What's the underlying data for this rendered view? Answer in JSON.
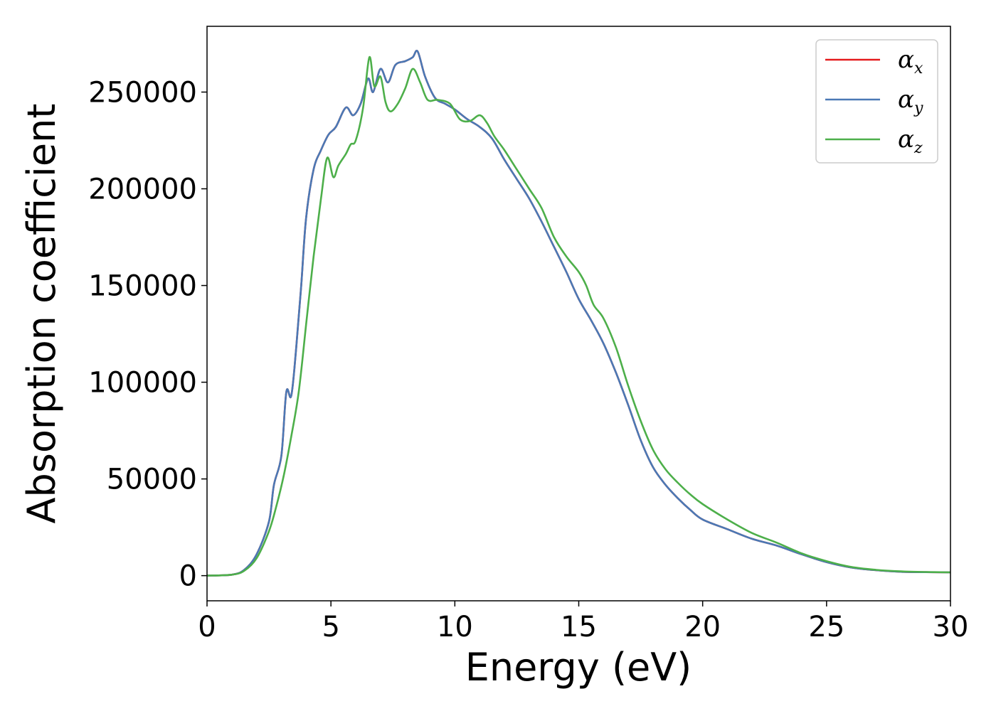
{
  "chart_data": {
    "type": "line",
    "xlabel": "Energy (eV)",
    "ylabel": "Absorption coefficient",
    "xlim": [
      0,
      30
    ],
    "ylim": [
      -13000,
      284000
    ],
    "xticks": [
      "0",
      "5",
      "10",
      "15",
      "20",
      "25",
      "30"
    ],
    "yticks": [
      "0",
      "50000",
      "100000",
      "150000",
      "200000",
      "250000"
    ],
    "grid": false,
    "legend_position": "top-right",
    "series": [
      {
        "name": "α_x",
        "symbol": "α",
        "subscript": "x",
        "color": "#e41a1c",
        "x": [
          0,
          1,
          1.5,
          2,
          2.5,
          2.7,
          3,
          3.2,
          3.4,
          3.6,
          3.8,
          4,
          4.3,
          4.6,
          4.9,
          5.2,
          5.6,
          5.9,
          6.2,
          6.5,
          6.7,
          7.0,
          7.3,
          7.6,
          8.0,
          8.3,
          8.5,
          8.8,
          9.2,
          9.6,
          10,
          10.5,
          11,
          11.5,
          12,
          12.5,
          13,
          13.5,
          14,
          14.5,
          15,
          15.5,
          16,
          16.5,
          17,
          17.5,
          18,
          18.5,
          19,
          19.5,
          20,
          21,
          22,
          23,
          24,
          25,
          26,
          27,
          28,
          29,
          30
        ],
        "values": [
          0,
          500,
          3000,
          11000,
          28000,
          47000,
          62000,
          95000,
          93000,
          118000,
          150000,
          185000,
          210000,
          220000,
          228000,
          232000,
          242000,
          238000,
          244000,
          257000,
          250000,
          262000,
          255000,
          264000,
          266000,
          268000,
          271000,
          258000,
          247000,
          244000,
          241000,
          236000,
          232000,
          226000,
          215000,
          205000,
          195000,
          183000,
          170000,
          157000,
          143000,
          132000,
          120000,
          105000,
          88000,
          70000,
          56000,
          47000,
          40000,
          34000,
          29000,
          24000,
          19000,
          15500,
          11000,
          7000,
          4200,
          2800,
          2000,
          1800,
          1700
        ]
      },
      {
        "name": "α_y",
        "symbol": "α",
        "subscript": "y",
        "color": "#4a79b5",
        "x": [
          0,
          1,
          1.5,
          2,
          2.5,
          2.7,
          3,
          3.2,
          3.4,
          3.6,
          3.8,
          4,
          4.3,
          4.6,
          4.9,
          5.2,
          5.6,
          5.9,
          6.2,
          6.5,
          6.7,
          7.0,
          7.3,
          7.6,
          8.0,
          8.3,
          8.5,
          8.8,
          9.2,
          9.6,
          10,
          10.5,
          11,
          11.5,
          12,
          12.5,
          13,
          13.5,
          14,
          14.5,
          15,
          15.5,
          16,
          16.5,
          17,
          17.5,
          18,
          18.5,
          19,
          19.5,
          20,
          21,
          22,
          23,
          24,
          25,
          26,
          27,
          28,
          29,
          30
        ],
        "values": [
          0,
          500,
          3000,
          11000,
          28000,
          47000,
          62000,
          95000,
          93000,
          118000,
          150000,
          185000,
          210000,
          220000,
          228000,
          232000,
          242000,
          238000,
          244000,
          257000,
          250000,
          262000,
          255000,
          264000,
          266000,
          268000,
          271000,
          258000,
          247000,
          244000,
          241000,
          236000,
          232000,
          226000,
          215000,
          205000,
          195000,
          183000,
          170000,
          157000,
          143000,
          132000,
          120000,
          105000,
          88000,
          70000,
          56000,
          47000,
          40000,
          34000,
          29000,
          24000,
          19000,
          15500,
          11000,
          7000,
          4200,
          2800,
          2000,
          1800,
          1700
        ]
      },
      {
        "name": "α_z",
        "symbol": "α",
        "subscript": "z",
        "color": "#4daf4a",
        "x": [
          0,
          1,
          1.5,
          2,
          2.5,
          2.8,
          3.1,
          3.4,
          3.7,
          4.0,
          4.3,
          4.6,
          4.85,
          5.1,
          5.3,
          5.6,
          5.8,
          6.0,
          6.3,
          6.55,
          6.75,
          7.0,
          7.2,
          7.4,
          7.7,
          8.0,
          8.3,
          8.6,
          8.9,
          9.3,
          9.8,
          10.2,
          10.6,
          11.0,
          11.3,
          11.6,
          12,
          12.5,
          13,
          13.5,
          14,
          14.5,
          15,
          15.3,
          15.6,
          16,
          16.5,
          17,
          17.5,
          18,
          18.5,
          19,
          19.5,
          20,
          21,
          22,
          23,
          24,
          25,
          26,
          27,
          28,
          29,
          30
        ],
        "values": [
          0,
          500,
          2500,
          9000,
          23000,
          36000,
          52000,
          72000,
          95000,
          130000,
          165000,
          195000,
          216000,
          206000,
          212000,
          218000,
          223000,
          225000,
          242000,
          268000,
          253000,
          258000,
          245000,
          240000,
          244000,
          252000,
          262000,
          255000,
          246000,
          246000,
          244000,
          236000,
          235000,
          238000,
          234000,
          227000,
          220000,
          210000,
          200000,
          190000,
          175000,
          165000,
          157000,
          150000,
          140000,
          133000,
          118000,
          98000,
          80000,
          65000,
          55000,
          48000,
          42000,
          37000,
          29000,
          22000,
          17000,
          11500,
          7500,
          4500,
          3000,
          2200,
          1900,
          1700
        ]
      }
    ]
  }
}
